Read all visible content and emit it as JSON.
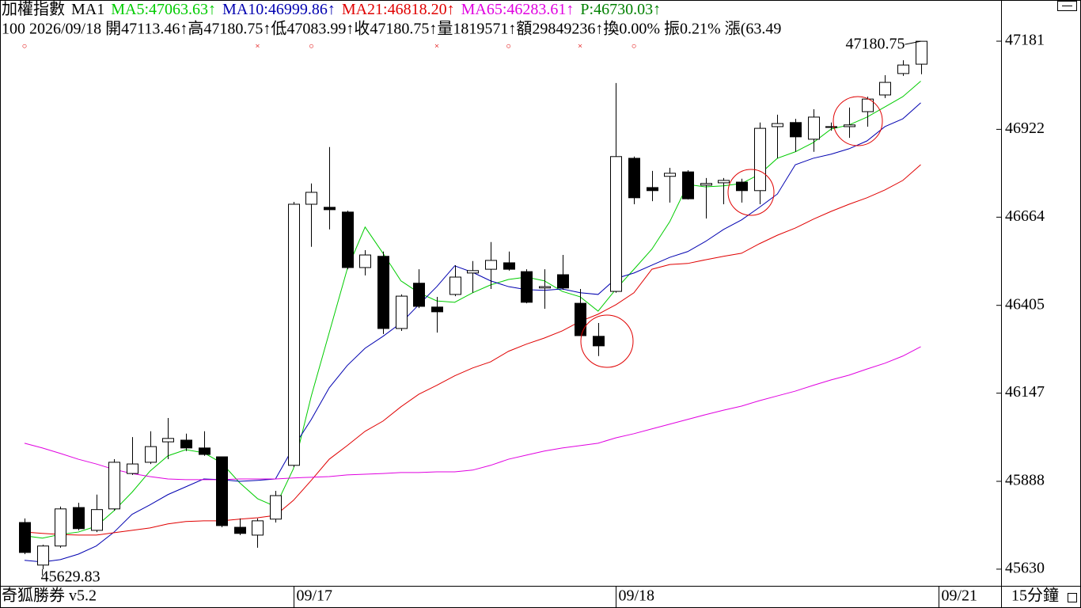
{
  "chart_data": {
    "type": "candlestick",
    "title": "加權指數",
    "period_label": "MA1",
    "indicator": {
      "text": "P:46730.03↑",
      "color": "#008000"
    },
    "info": "100 2026/09/18 開47113.46↑高47180.75↑低47083.99↑收47180.75↑量1819571↑額29849236↑換0.00% 振0.21% 漲(63.49",
    "footer_left": "奇狐勝券 v5.2",
    "footer_right": "15分鐘",
    "categories": [
      null,
      null,
      null,
      null,
      null,
      null,
      null,
      null,
      null,
      null,
      null,
      null,
      null,
      null,
      null,
      "09/17",
      null,
      null,
      null,
      null,
      null,
      null,
      null,
      null,
      null,
      null,
      null,
      null,
      null,
      null,
      null,
      null,
      null,
      "09/18",
      null,
      null,
      null,
      null,
      null,
      null,
      null,
      null,
      null,
      null,
      null,
      null,
      null,
      null,
      null,
      null,
      null,
      "09/21"
    ],
    "open": [
      45767,
      45642,
      45698,
      45811,
      45744,
      45807,
      45911,
      45944,
      46004,
      46009,
      45986,
      45960,
      45753,
      45730,
      45777,
      45935,
      46702,
      46693,
      46679,
      46516,
      46549,
      46337,
      46470,
      46400,
      46437,
      46500,
      46511,
      46530,
      46504,
      46456,
      46495,
      46411,
      46314,
      46446,
      46837,
      46751,
      46784,
      46797,
      46758,
      46765,
      46767,
      46742,
      46930,
      46942,
      46893,
      46930,
      46930,
      46974,
      47023,
      47086,
      47113.46,
      null
    ],
    "high": [
      45779,
      45702,
      45814,
      45825,
      45849,
      45953,
      46018,
      46035,
      46074,
      46028,
      46035,
      45960,
      45779,
      45779,
      45860,
      46709,
      46763,
      46870,
      46683,
      46567,
      46563,
      46437,
      46511,
      46430,
      46523,
      46535,
      46591,
      46563,
      46511,
      46511,
      46553,
      46453,
      46353,
      47058,
      46842,
      46800,
      46809,
      46802,
      46779,
      46779,
      46777,
      46942,
      46965,
      46953,
      46981,
      46942,
      46986,
      47018,
      47081,
      47125,
      47180.75,
      null
    ],
    "low": [
      45674,
      45629.83,
      45693,
      45744,
      45739,
      45802,
      45907,
      45939,
      45953,
      45977,
      45963,
      45753,
      45730,
      45693,
      45767,
      45930,
      46577,
      46628,
      46511,
      46493,
      46321,
      46330,
      46397,
      46325,
      46432,
      46442,
      46453,
      46507,
      46411,
      46395,
      46451,
      46316,
      46256,
      46442,
      46702,
      46711,
      46707,
      46716,
      46660,
      46702,
      46707,
      46702,
      46837,
      46856,
      46856,
      46918,
      46897,
      46930,
      47014,
      47079,
      47083.99,
      null
    ],
    "close": [
      45679,
      45698,
      45807,
      45749,
      45805,
      45944,
      45939,
      45990,
      46014,
      45986,
      45967,
      45758,
      45735,
      45772,
      45846,
      46702,
      46737,
      46686,
      46516,
      46553,
      46337,
      46432,
      46402,
      46386,
      46488,
      46507,
      46537,
      46511,
      46414,
      46460,
      46456,
      46316,
      46286,
      46842,
      46721,
      46742,
      46793,
      46718,
      46763,
      46772,
      46742,
      46925,
      46939,
      46900,
      46958,
      46928,
      46935,
      47011,
      47060,
      47111,
      47180.75,
      null
    ],
    "up_color": "#ffffff",
    "down_color": "#000000",
    "series": [
      {
        "name": "MA5:47063.63↑",
        "color": "#00cc00",
        "values": [
          45728,
          45721,
          45732,
          45739,
          45756,
          45802,
          45856,
          45918,
          45963,
          45981,
          45972,
          45942,
          45884,
          45837,
          45814,
          45925,
          46139,
          46325,
          46511,
          46635,
          46558,
          46477,
          46442,
          46418,
          46414,
          46442,
          46465,
          46481,
          46488,
          46477,
          46446,
          46430,
          46388,
          46453,
          46511,
          46570,
          46651,
          46760,
          46753,
          46756,
          46763,
          46790,
          46837,
          46856,
          46883,
          46923,
          46935,
          46958,
          46988,
          47018,
          47063.63,
          null
        ]
      },
      {
        "name": "MA10:46999.86↑",
        "color": "#0000b0",
        "values": [
          45656,
          45651,
          45658,
          45674,
          45698,
          45739,
          45791,
          45819,
          45849,
          45872,
          45895,
          45893,
          45888,
          45891,
          45895,
          45988,
          46070,
          46163,
          46228,
          46279,
          46314,
          46353,
          46407,
          46460,
          46521,
          46502,
          46477,
          46460,
          46451,
          46449,
          46453,
          46442,
          46437,
          46484,
          46500,
          46523,
          46546,
          46563,
          46593,
          46628,
          46656,
          46693,
          46732,
          46818,
          46837,
          46849,
          46865,
          46888,
          46930,
          46953,
          46999.86,
          null
        ]
      },
      {
        "name": "MA21:46818.20↑",
        "color": "#e00000",
        "values": [
          45739,
          45735,
          45732,
          45730,
          45730,
          45737,
          45744,
          45751,
          45763,
          45770,
          45772,
          45772,
          45777,
          45781,
          45788,
          45832,
          45891,
          45953,
          45993,
          46035,
          46065,
          46107,
          46144,
          46170,
          46198,
          46221,
          46239,
          46270,
          46291,
          46309,
          46330,
          46358,
          46379,
          46407,
          46442,
          46511,
          46525,
          46528,
          46539,
          46549,
          46558,
          46586,
          46611,
          46632,
          46658,
          46681,
          46702,
          46721,
          46744,
          46772,
          46818.2,
          null
        ]
      },
      {
        "name": "MA65:46283.61↑",
        "color": "#e000e0",
        "values": [
          46000,
          45986,
          45970,
          45953,
          45939,
          45923,
          45911,
          45902,
          45895,
          45893,
          45893,
          45893,
          45895,
          45895,
          45895,
          45898,
          45900,
          45902,
          45907,
          45909,
          45911,
          45914,
          45914,
          45916,
          45916,
          45921,
          45935,
          45953,
          45965,
          45977,
          45986,
          45993,
          46000,
          46016,
          46028,
          46042,
          46056,
          46070,
          46084,
          46097,
          46109,
          46125,
          46139,
          46153,
          46170,
          46186,
          46200,
          46218,
          46235,
          46256,
          46283.61,
          null
        ]
      }
    ],
    "signals": [
      "○",
      null,
      null,
      null,
      null,
      null,
      null,
      null,
      null,
      null,
      null,
      null,
      null,
      "×",
      null,
      null,
      "○",
      null,
      null,
      null,
      null,
      null,
      null,
      "×",
      null,
      null,
      null,
      "○",
      null,
      null,
      null,
      "×",
      null,
      null,
      "○",
      null,
      null,
      null,
      null,
      null,
      null,
      null,
      null,
      null,
      null,
      null,
      null,
      null,
      null,
      null,
      null,
      null
    ],
    "signal_color": "#e00000",
    "ylim": [
      45581,
      47302
    ],
    "yticks": [
      47181,
      46922,
      46664,
      46405,
      46147,
      45888,
      45630
    ]
  }
}
